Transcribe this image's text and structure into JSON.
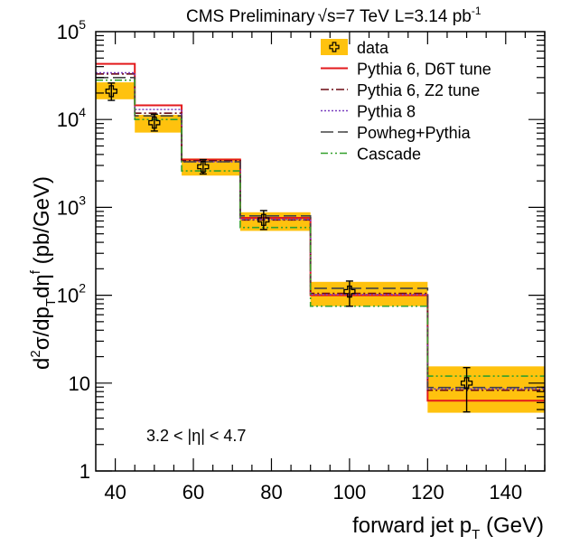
{
  "chart_data": {
    "type": "step-histogram",
    "title": "CMS Preliminary",
    "title_energy": "√s=7 TeV",
    "title_lumi": "L=3.14 pb",
    "title_lumi_sup": "-1",
    "xlabel": "forward jet p",
    "xlabel_sub": "T",
    "xlabel_unit": " (GeV)",
    "ylabel_parts": {
      "d1": "d",
      "s1": "2",
      "sig": "σ/dp",
      "sub": "T",
      "deta": "dη",
      "s2": "f",
      "unit": " (pb/GeV)"
    },
    "annotation": "3.2 < |η| < 4.7",
    "xlim": [
      35,
      150
    ],
    "ylim": [
      1,
      100000
    ],
    "yscale": "log",
    "x_ticks": [
      40,
      60,
      80,
      100,
      120,
      140
    ],
    "x_tick_labels": [
      "40",
      "60",
      "80",
      "100",
      "120",
      "140"
    ],
    "y_ticks": [
      {
        "value": 1,
        "base": "1",
        "exp": ""
      },
      {
        "value": 10,
        "base": "10",
        "exp": ""
      },
      {
        "value": 100,
        "base": "10",
        "exp": "2"
      },
      {
        "value": 1000,
        "base": "10",
        "exp": "3"
      },
      {
        "value": 10000,
        "base": "10",
        "exp": "4"
      },
      {
        "value": 100000,
        "base": "10",
        "exp": "5"
      }
    ],
    "bin_edges": [
      35,
      45,
      57,
      72,
      90,
      120,
      150
    ],
    "data": {
      "x": [
        39,
        50,
        62.5,
        78,
        100,
        130
      ],
      "y": [
        21000,
        9200,
        2900,
        720,
        110,
        10
      ],
      "err_low": [
        16500,
        7400,
        2400,
        560,
        75,
        4.7
      ],
      "err_high": [
        26000,
        11500,
        3500,
        920,
        145,
        15
      ],
      "band_low": [
        17000,
        7100,
        2300,
        540,
        75,
        4.6
      ],
      "band_high": [
        26500,
        11300,
        3600,
        880,
        142,
        15.5
      ]
    },
    "series": [
      {
        "name": "Pythia 6, D6T tune",
        "color": "#e31a1c",
        "dash": "",
        "values": [
          43000,
          14500,
          3500,
          760,
          100,
          6.3
        ]
      },
      {
        "name": "Pythia 6, Z2 tune",
        "color": "#6b0a12",
        "dash": "9 3 2 3",
        "values": [
          33000,
          11800,
          3400,
          720,
          105,
          8.3
        ]
      },
      {
        "name": "Pythia 8",
        "color": "#7a3fbf",
        "dash": "2 2",
        "values": [
          34000,
          13000,
          3300,
          730,
          102,
          8.6
        ]
      },
      {
        "name": "Powheg+Pythia",
        "color": "#444444",
        "dash": "14 5",
        "values": [
          30000,
          11000,
          3300,
          800,
          120,
          8.9
        ]
      },
      {
        "name": "Cascade",
        "color": "#33a02c",
        "dash": "8 3 2 3 2 3",
        "values": [
          28000,
          10000,
          2600,
          590,
          75,
          12
        ]
      }
    ],
    "legend_data_label": "data",
    "legend_position": "top-right",
    "colors": {
      "band": "#ffc20e",
      "frame": "#000000"
    }
  }
}
